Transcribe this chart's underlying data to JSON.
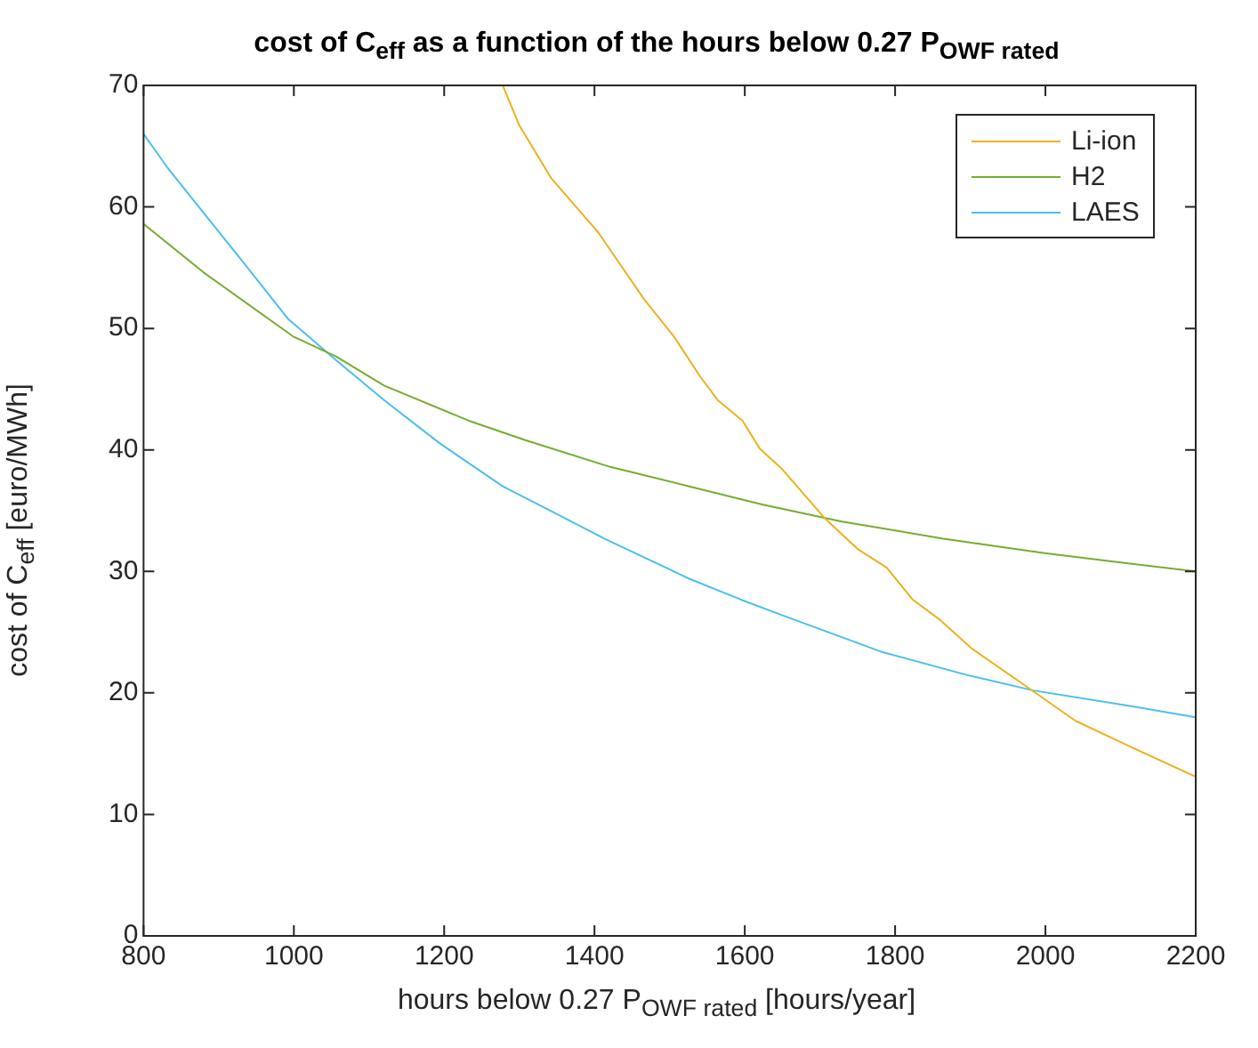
{
  "chart_data": {
    "type": "line",
    "title": "cost of C$_{eff}$ as a function of the hours below 0.27 P$_{OWF rated}$",
    "xlabel": "hours below 0.27 P$_{OWF rated}$ [hours/year]",
    "ylabel": "cost of C$_{eff}$ [euro/MWh]",
    "xlim": [
      800,
      2200
    ],
    "xticks": [
      800,
      1000,
      1200,
      1400,
      1600,
      1800,
      2000,
      2200
    ],
    "ylim": [
      0,
      70
    ],
    "yticks": [
      0,
      10,
      20,
      30,
      40,
      50,
      60,
      70
    ],
    "grid": false,
    "legend": "top right",
    "marker": "none",
    "line_style": "solid",
    "series": [
      {
        "name": "Li-ion",
        "color": "#edb120",
        "x": [
          1278,
          1300,
          1342,
          1405,
          1466,
          1506,
          1541,
          1564,
          1597,
          1620,
          1650,
          1706,
          1751,
          1789,
          1823,
          1860,
          1901,
          1980,
          2040,
          2112,
          2200
        ],
        "values": [
          70,
          66.7,
          62.4,
          57.9,
          52.4,
          49.3,
          46.0,
          44.1,
          42.4,
          40.1,
          38.4,
          34.4,
          31.8,
          30.3,
          27.7,
          26.0,
          23.7,
          20.3,
          17.7,
          15.6,
          13.1
        ]
      },
      {
        "name": "H2",
        "color": "#77ac30",
        "x": [
          800,
          880,
          1000,
          1056,
          1120,
          1233,
          1308,
          1421,
          1526,
          1624,
          1729,
          1864,
          1999,
          2105,
          2200
        ],
        "values": [
          58.6,
          54.6,
          49.3,
          47.7,
          45.3,
          42.4,
          40.8,
          38.6,
          37.0,
          35.5,
          34.1,
          32.7,
          31.5,
          30.7,
          30.0
        ]
      },
      {
        "name": "LAES",
        "color": "#4dbeee",
        "x": [
          800,
          831,
          880,
          932,
          992,
          1056,
          1120,
          1195,
          1278,
          1338,
          1413,
          1526,
          1594,
          1654,
          1781,
          1894,
          1984,
          2105,
          2200
        ],
        "values": [
          66.0,
          63.3,
          59.5,
          55.5,
          50.8,
          47.4,
          44.1,
          40.5,
          37.0,
          35.1,
          32.7,
          29.4,
          27.7,
          26.3,
          23.4,
          21.5,
          20.2,
          19.0,
          18.0
        ]
      }
    ]
  }
}
